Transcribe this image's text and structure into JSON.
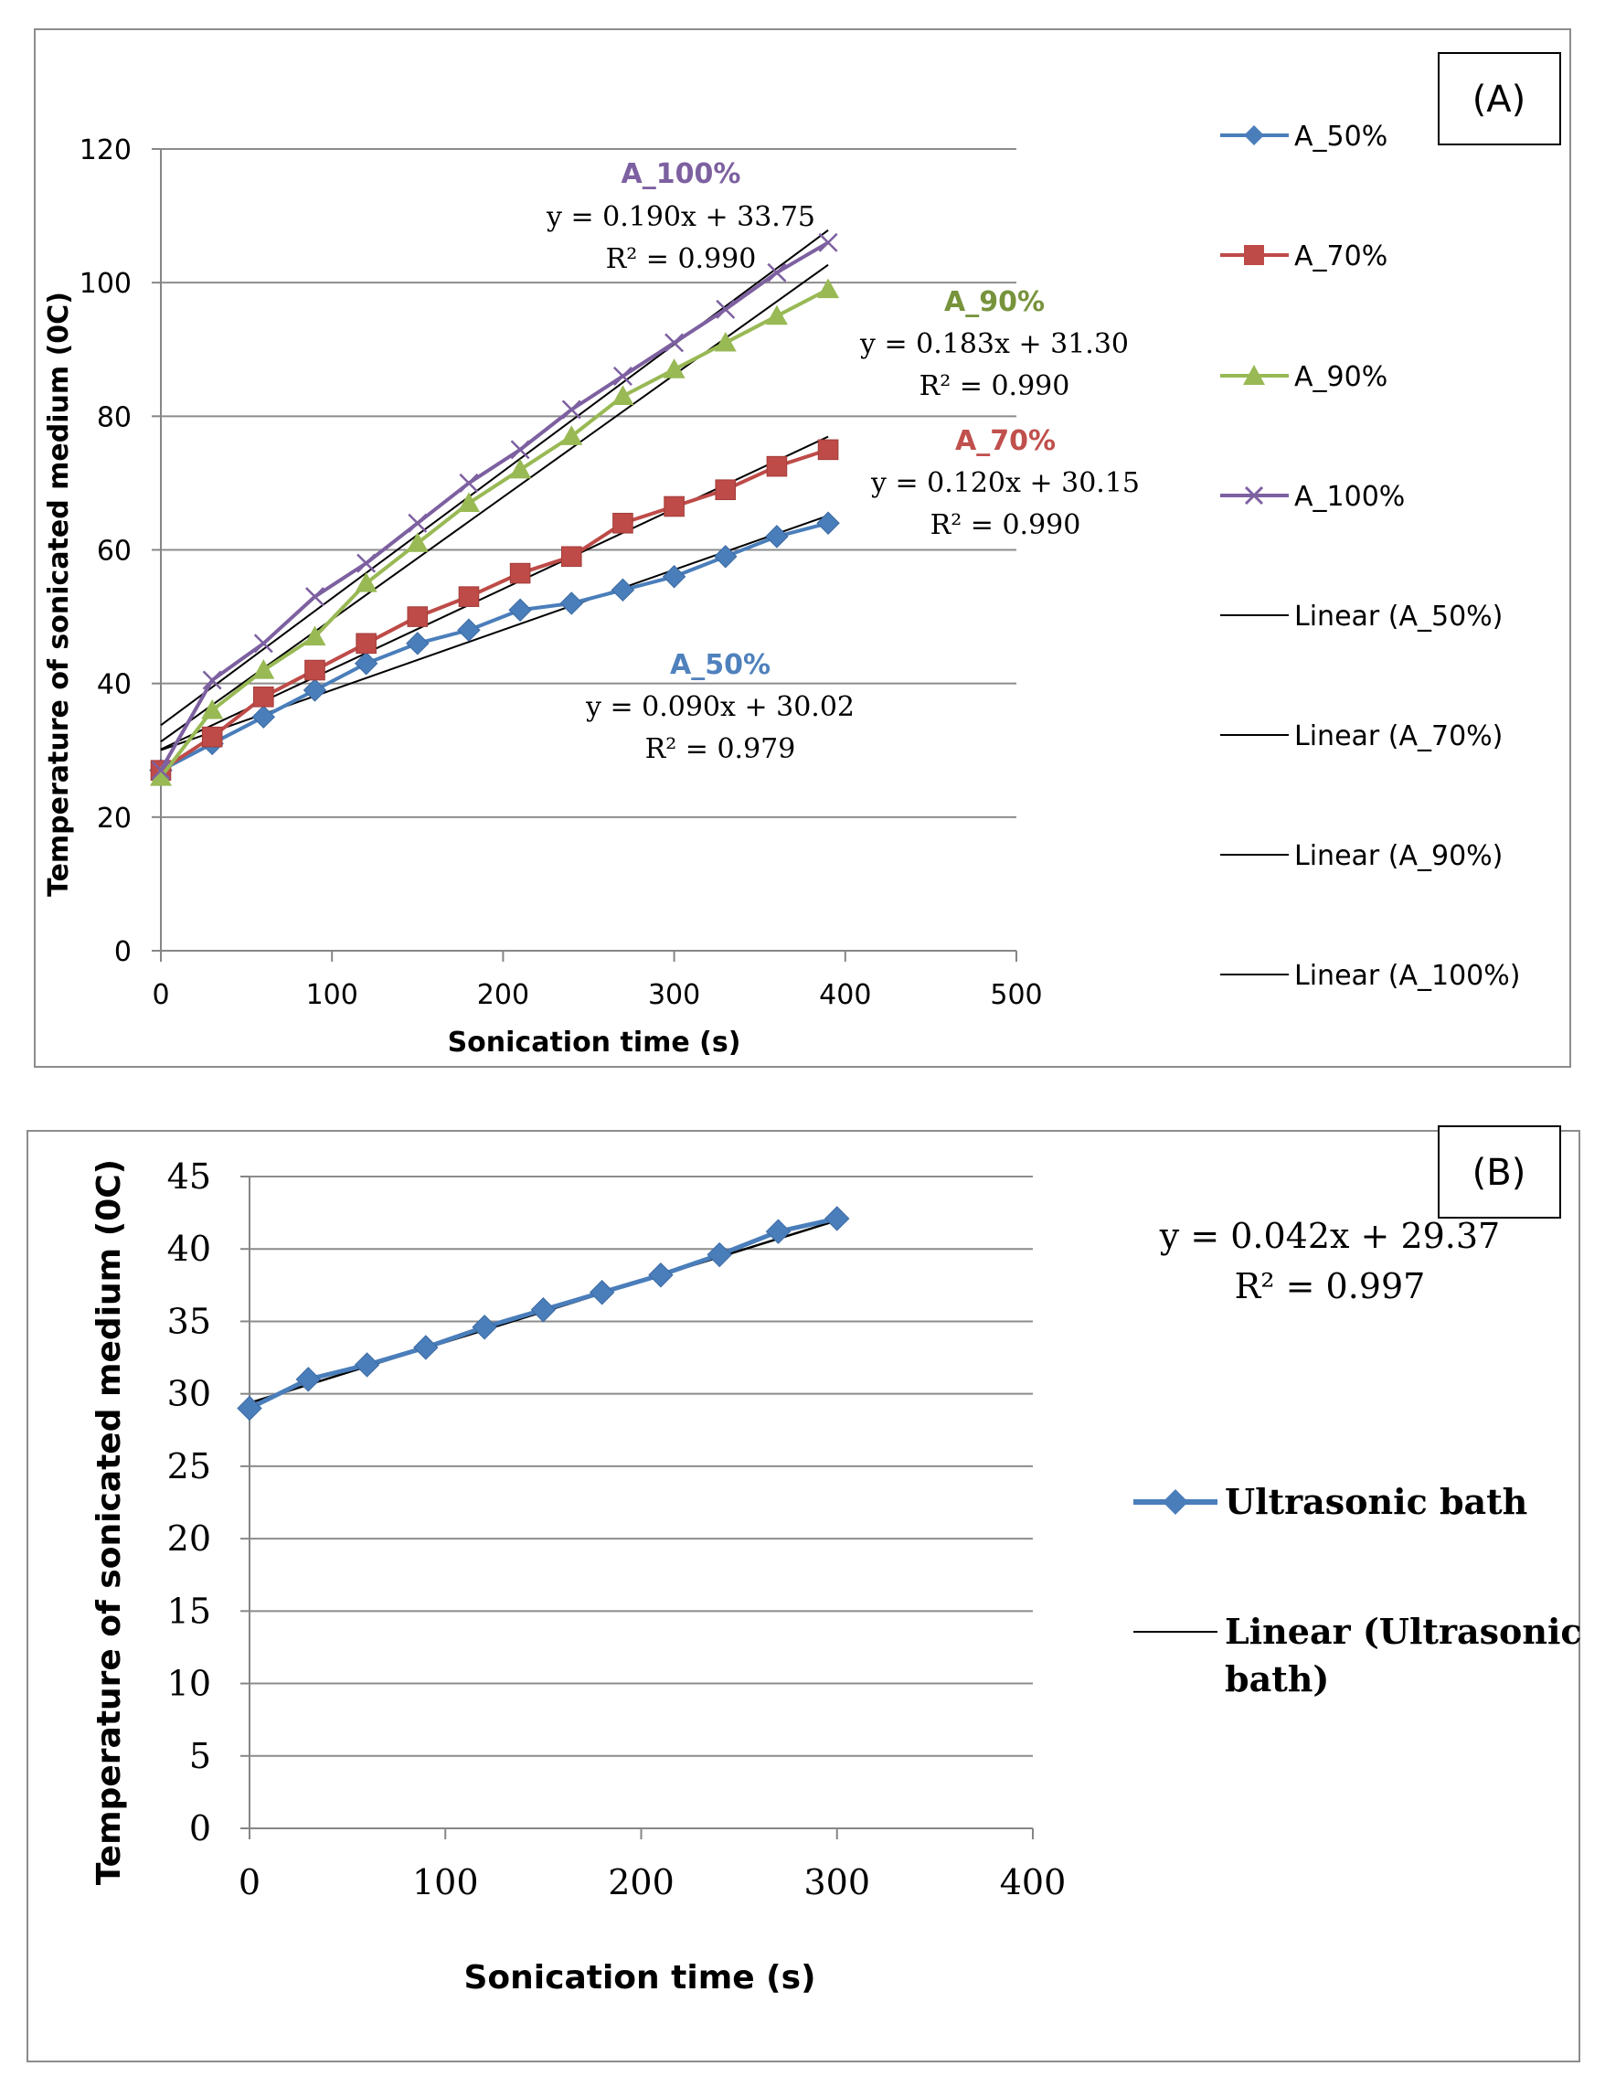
{
  "chart_data": [
    {
      "type": "line",
      "panel_label": "(A)",
      "xlabel": "Sonication time (s)",
      "ylabel": "Temperature of sonicated medium (0C)",
      "xlim": [
        0,
        500
      ],
      "ylim": [
        0,
        120
      ],
      "x_ticks": [
        "0",
        "100",
        "200",
        "300",
        "400",
        "500"
      ],
      "y_ticks": [
        "0",
        "20",
        "40",
        "60",
        "80",
        "100",
        "120"
      ],
      "grid": true,
      "legend_position": "right",
      "x": [
        0,
        30,
        60,
        90,
        120,
        150,
        180,
        210,
        240,
        270,
        300,
        330,
        360,
        390
      ],
      "series": [
        {
          "name": "A_50%",
          "marker": "diamond",
          "color": "#4A7EBB",
          "values": [
            27,
            31,
            35,
            39,
            43,
            46,
            48,
            51,
            52,
            54,
            56,
            59,
            62,
            64
          ]
        },
        {
          "name": "A_70%",
          "marker": "square",
          "color": "#BE4B48",
          "values": [
            27,
            32,
            38,
            42,
            46,
            50,
            53,
            56.5,
            59,
            64,
            66.5,
            69,
            72.5,
            75
          ]
        },
        {
          "name": "A_90%",
          "marker": "triangle",
          "color": "#98B954",
          "values": [
            26,
            36,
            42,
            47,
            55,
            61,
            67,
            72,
            77,
            83,
            87,
            91,
            95,
            99
          ]
        },
        {
          "name": "A_100%",
          "marker": "x",
          "color": "#7D60A0",
          "values": [
            27,
            40.5,
            46,
            53,
            58,
            64,
            70,
            75,
            81,
            86,
            91,
            96,
            101.5,
            106
          ]
        }
      ],
      "trendlines": [
        {
          "name": "Linear (A_50%)",
          "slope": 0.09,
          "intercept": 30.02
        },
        {
          "name": "Linear (A_70%)",
          "slope": 0.12,
          "intercept": 30.15
        },
        {
          "name": "Linear (A_90%)",
          "slope": 0.183,
          "intercept": 31.3
        },
        {
          "name": "Linear (A_100%)",
          "slope": 0.19,
          "intercept": 33.75
        }
      ],
      "annotations": [
        {
          "title": "A_100%",
          "equation": "y = 0.190x + 33.75",
          "r2": "R² = 0.990",
          "color": "#7D60A0"
        },
        {
          "title": "A_90%",
          "equation": "y = 0.183x + 31.30",
          "r2": "R² = 0.990",
          "color": "#77933C"
        },
        {
          "title": "A_70%",
          "equation": "y = 0.120x + 30.15",
          "r2": "R² = 0.990",
          "color": "#C0504D"
        },
        {
          "title": "A_50%",
          "equation": "y = 0.090x + 30.02",
          "r2": "R² = 0.979",
          "color": "#4F81BD"
        }
      ]
    },
    {
      "type": "line",
      "panel_label": "(B)",
      "xlabel": "Sonication time (s)",
      "ylabel": "Temperature of sonicated medium (0C)",
      "xlim": [
        0,
        400
      ],
      "ylim": [
        0,
        45
      ],
      "x_ticks": [
        "0",
        "100",
        "200",
        "300",
        "400"
      ],
      "y_ticks": [
        "0",
        "5",
        "10",
        "15",
        "20",
        "25",
        "30",
        "35",
        "40",
        "45"
      ],
      "grid": true,
      "legend_position": "right",
      "x": [
        0,
        30,
        60,
        90,
        120,
        150,
        180,
        210,
        240,
        270,
        300
      ],
      "series": [
        {
          "name": "Ultrasonic bath",
          "marker": "diamond",
          "color": "#4A7EBB",
          "values": [
            29,
            31,
            32,
            33.2,
            34.6,
            35.8,
            37,
            38.2,
            39.6,
            41.2,
            42.1
          ]
        }
      ],
      "trendlines": [
        {
          "name": "Linear (Ultrasonic bath)",
          "slope": 0.042,
          "intercept": 29.37
        }
      ],
      "annotations": [
        {
          "equation": "y = 0.042x + 29.37",
          "r2": "R² = 0.997"
        }
      ]
    }
  ]
}
